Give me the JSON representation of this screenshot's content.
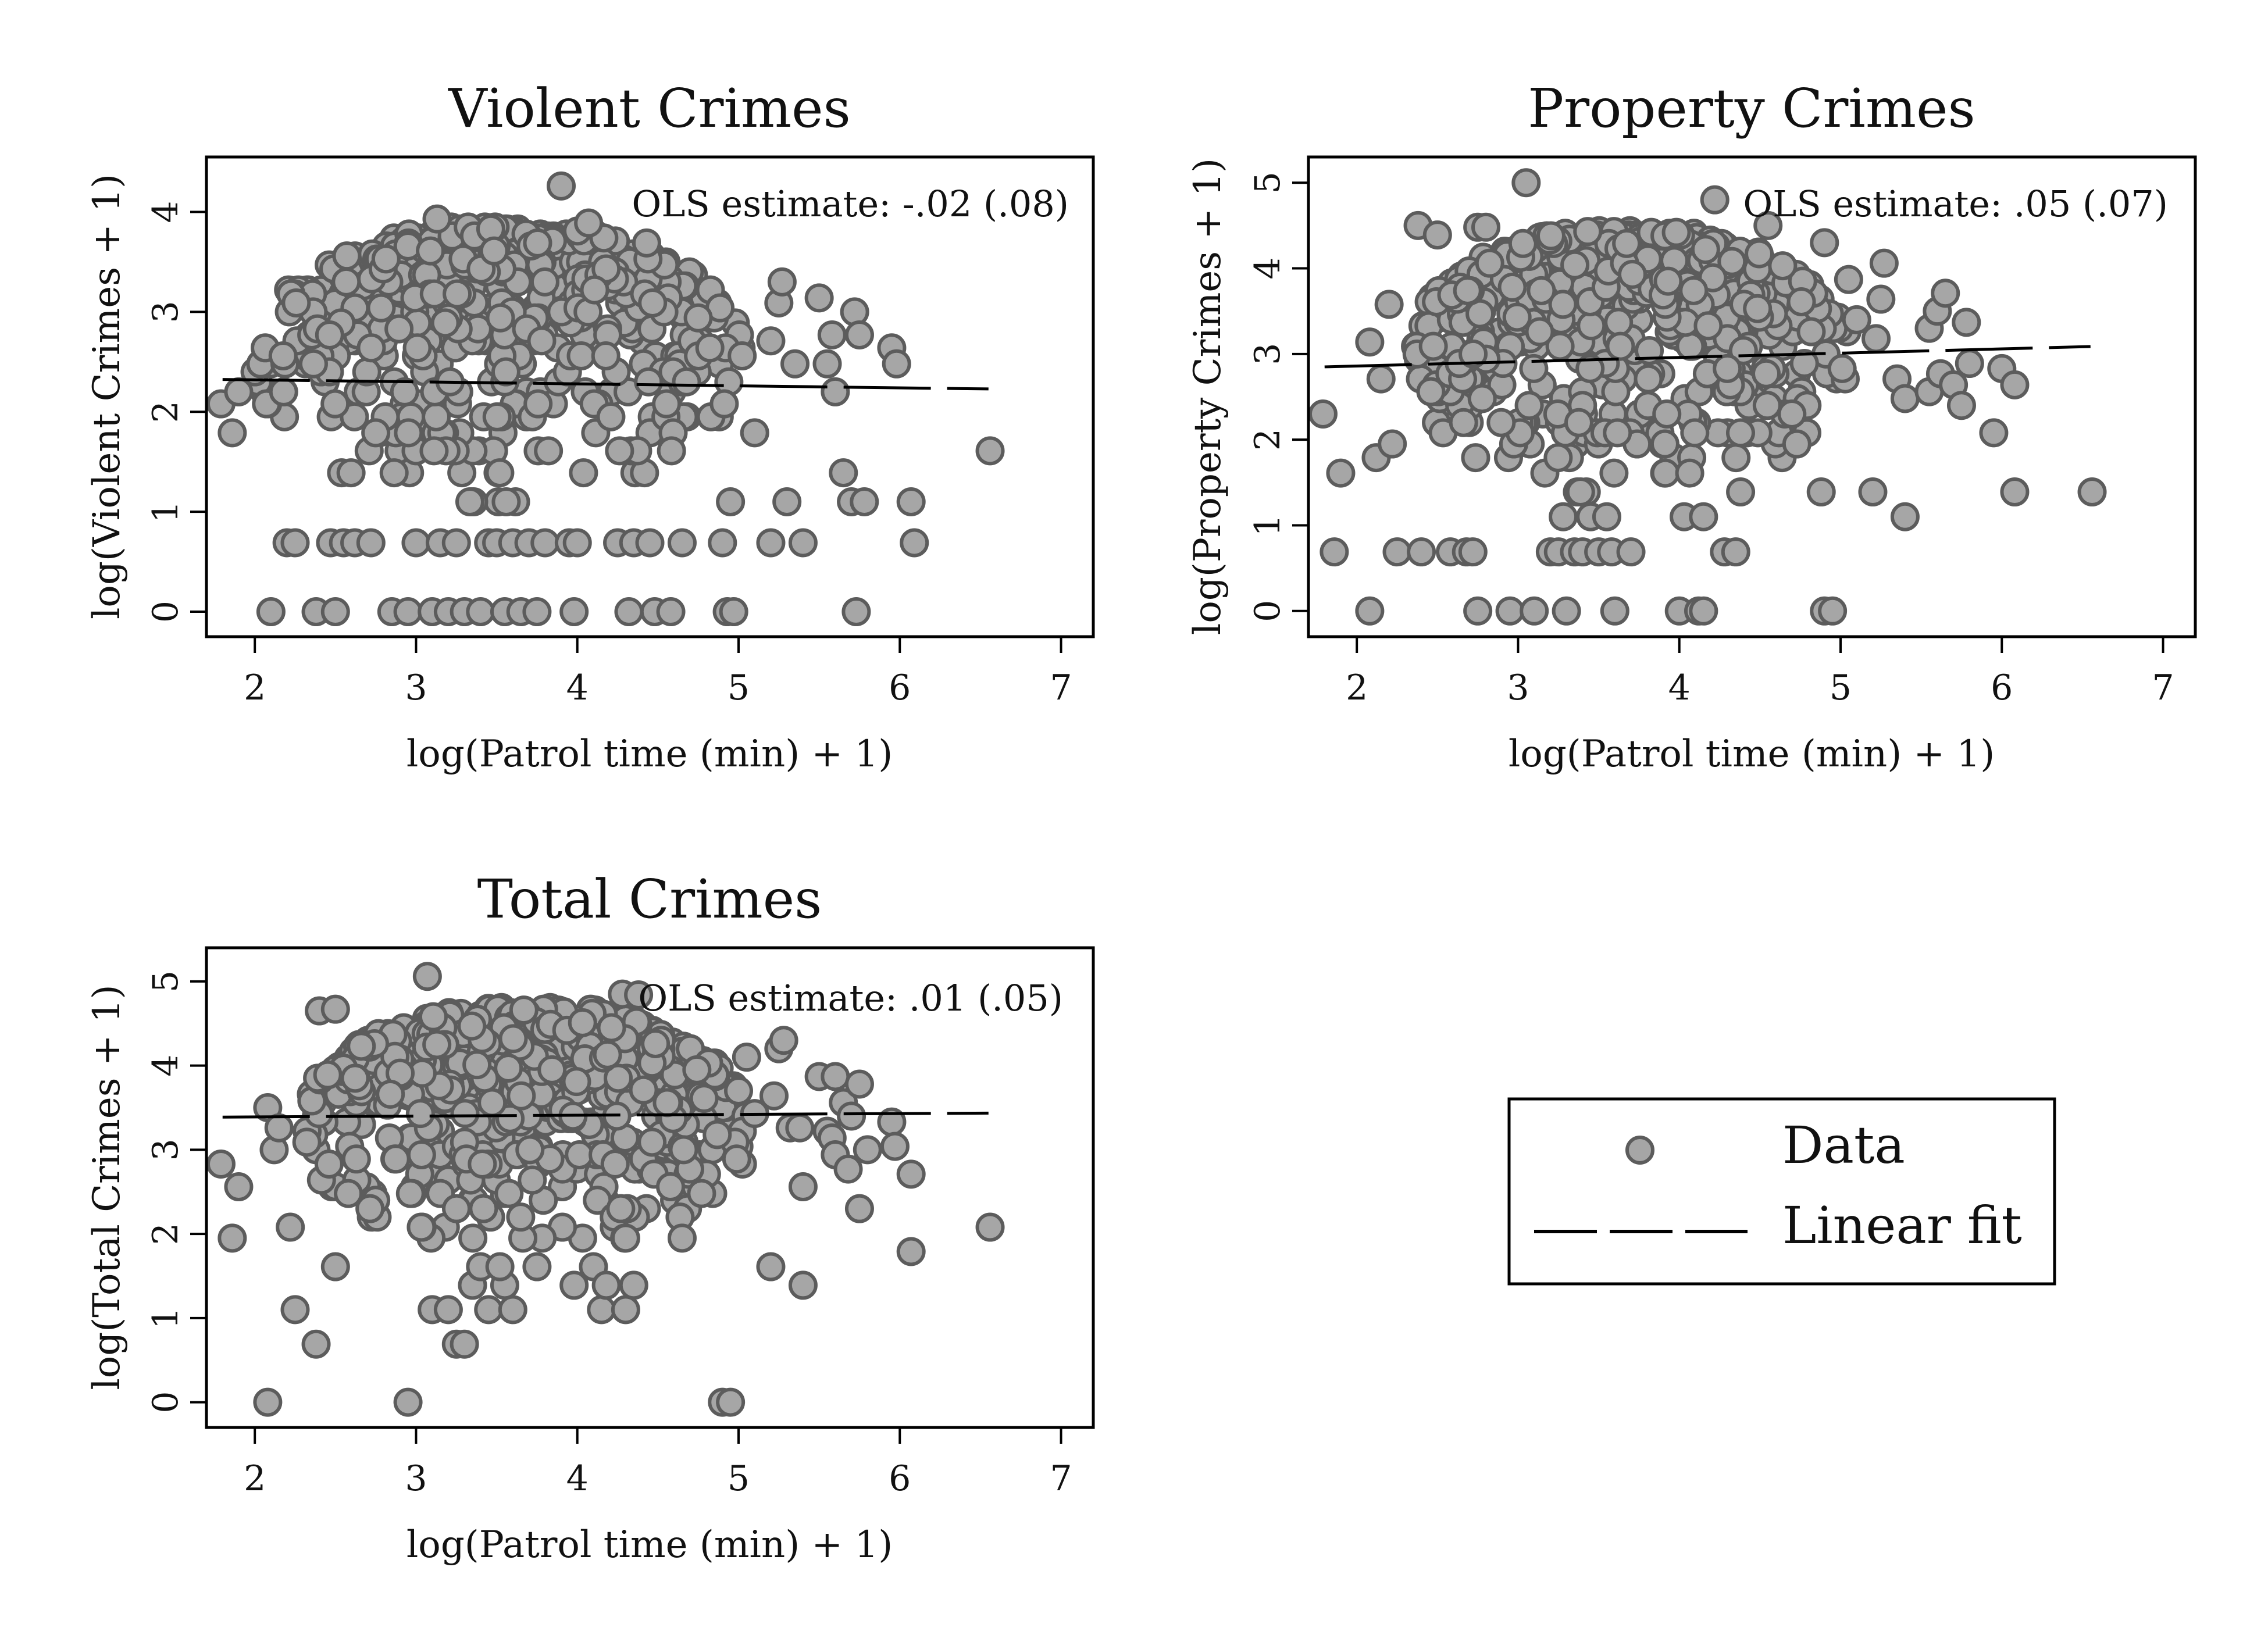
{
  "chart_data": [
    {
      "type": "scatter",
      "title": "Violent Crimes",
      "xlabel": "log(Patrol time (min) + 1)",
      "ylabel": "log(Violent Crimes + 1)",
      "annotation": "OLS estimate: -.02 (.08)",
      "xlim": [
        1.7,
        7.2
      ],
      "ylim": [
        -0.25,
        4.55
      ],
      "xticks": [
        2,
        3,
        4,
        5,
        6,
        7
      ],
      "yticks": [
        0,
        1,
        2,
        3,
        4
      ],
      "fit": {
        "slope": -0.02,
        "intercept": 2.36,
        "x": [
          1.8,
          6.55
        ]
      },
      "cloud": {
        "seed": 11,
        "n": 560,
        "xmin": 2.0,
        "xmax": 5.05,
        "ymin": 1.1,
        "ymax": 3.85,
        "levels": [
          1.1,
          1.39,
          1.61,
          1.79,
          1.95,
          2.08,
          2.2,
          2.3,
          2.4,
          2.48,
          2.56,
          2.64,
          2.71,
          2.77,
          2.83,
          2.89,
          2.94,
          3.0,
          3.04,
          3.09,
          3.14,
          3.18,
          3.22,
          3.26,
          3.3,
          3.33,
          3.37,
          3.4,
          3.43,
          3.47,
          3.5,
          3.53,
          3.56,
          3.58,
          3.61,
          3.64,
          3.66,
          3.69,
          3.71,
          3.74,
          3.76,
          3.78,
          3.81,
          3.83,
          3.85
        ]
      },
      "points": [
        {
          "x": 1.79,
          "y": 2.08
        },
        {
          "x": 1.86,
          "y": 1.79
        },
        {
          "x": 1.9,
          "y": 2.2
        },
        {
          "x": 2.1,
          "y": 0.0
        },
        {
          "x": 2.2,
          "y": 0.69
        },
        {
          "x": 2.25,
          "y": 0.69
        },
        {
          "x": 2.38,
          "y": 0.0
        },
        {
          "x": 2.5,
          "y": 0.0
        },
        {
          "x": 2.47,
          "y": 0.69
        },
        {
          "x": 2.55,
          "y": 0.69
        },
        {
          "x": 2.62,
          "y": 0.69
        },
        {
          "x": 2.72,
          "y": 0.69
        },
        {
          "x": 2.85,
          "y": 0.0
        },
        {
          "x": 2.95,
          "y": 0.0
        },
        {
          "x": 3.0,
          "y": 0.69
        },
        {
          "x": 3.1,
          "y": 0.0
        },
        {
          "x": 3.2,
          "y": 0.0
        },
        {
          "x": 3.15,
          "y": 0.69
        },
        {
          "x": 3.25,
          "y": 0.69
        },
        {
          "x": 3.3,
          "y": 0.0
        },
        {
          "x": 3.4,
          "y": 0.0
        },
        {
          "x": 3.45,
          "y": 0.69
        },
        {
          "x": 3.5,
          "y": 0.69
        },
        {
          "x": 3.55,
          "y": 0.0
        },
        {
          "x": 3.6,
          "y": 0.69
        },
        {
          "x": 3.65,
          "y": 0.0
        },
        {
          "x": 3.75,
          "y": 0.0
        },
        {
          "x": 3.7,
          "y": 0.69
        },
        {
          "x": 3.8,
          "y": 0.69
        },
        {
          "x": 3.95,
          "y": 0.69
        },
        {
          "x": 3.98,
          "y": 0.0
        },
        {
          "x": 4.0,
          "y": 0.69
        },
        {
          "x": 4.32,
          "y": 0.0
        },
        {
          "x": 4.25,
          "y": 0.69
        },
        {
          "x": 4.35,
          "y": 0.69
        },
        {
          "x": 4.45,
          "y": 0.69
        },
        {
          "x": 4.48,
          "y": 0.0
        },
        {
          "x": 4.58,
          "y": 0.0
        },
        {
          "x": 4.65,
          "y": 0.69
        },
        {
          "x": 4.9,
          "y": 0.69
        },
        {
          "x": 4.93,
          "y": 0.0
        },
        {
          "x": 4.97,
          "y": 0.0
        },
        {
          "x": 4.95,
          "y": 1.1
        },
        {
          "x": 5.1,
          "y": 1.79
        },
        {
          "x": 5.2,
          "y": 0.69
        },
        {
          "x": 5.3,
          "y": 1.1
        },
        {
          "x": 5.4,
          "y": 0.69
        },
        {
          "x": 5.2,
          "y": 2.71
        },
        {
          "x": 5.25,
          "y": 3.09
        },
        {
          "x": 5.27,
          "y": 3.3
        },
        {
          "x": 5.35,
          "y": 2.48
        },
        {
          "x": 5.5,
          "y": 3.14
        },
        {
          "x": 5.55,
          "y": 2.48
        },
        {
          "x": 5.6,
          "y": 2.2
        },
        {
          "x": 5.58,
          "y": 2.77
        },
        {
          "x": 5.65,
          "y": 1.39
        },
        {
          "x": 5.7,
          "y": 1.1
        },
        {
          "x": 5.72,
          "y": 3.0
        },
        {
          "x": 5.75,
          "y": 2.77
        },
        {
          "x": 5.78,
          "y": 1.1
        },
        {
          "x": 5.73,
          "y": 0.0
        },
        {
          "x": 5.95,
          "y": 2.64
        },
        {
          "x": 5.98,
          "y": 2.48
        },
        {
          "x": 6.07,
          "y": 1.1
        },
        {
          "x": 6.09,
          "y": 0.69
        },
        {
          "x": 6.56,
          "y": 1.61
        },
        {
          "x": 3.9,
          "y": 4.26
        },
        {
          "x": 4.07,
          "y": 3.89
        },
        {
          "x": 3.13,
          "y": 3.93
        },
        {
          "x": 4.43,
          "y": 3.69
        }
      ]
    },
    {
      "type": "scatter",
      "title": "Property Crimes",
      "xlabel": "log(Patrol time (min) + 1)",
      "ylabel": "log(Property Crimes + 1)",
      "annotation": "OLS estimate: .05 (.07)",
      "xlim": [
        1.7,
        7.2
      ],
      "ylim": [
        -0.3,
        5.3
      ],
      "xticks": [
        2,
        3,
        4,
        5,
        6,
        7
      ],
      "yticks": [
        0,
        1,
        2,
        3,
        4,
        5
      ],
      "fit": {
        "slope": 0.05,
        "intercept": 2.76,
        "x": [
          1.8,
          6.55
        ]
      },
      "cloud": {
        "seed": 23,
        "n": 620,
        "xmin": 2.3,
        "xmax": 5.05,
        "ymin": 1.39,
        "ymax": 4.45,
        "levels": [
          1.39,
          1.61,
          1.79,
          1.95,
          2.08,
          2.2,
          2.3,
          2.4,
          2.48,
          2.56,
          2.64,
          2.71,
          2.77,
          2.83,
          2.89,
          2.94,
          3.0,
          3.04,
          3.09,
          3.14,
          3.18,
          3.22,
          3.26,
          3.3,
          3.33,
          3.37,
          3.4,
          3.43,
          3.47,
          3.5,
          3.53,
          3.56,
          3.58,
          3.61,
          3.64,
          3.66,
          3.69,
          3.71,
          3.74,
          3.76,
          3.78,
          3.81,
          3.83,
          3.85,
          3.87,
          3.89,
          3.91,
          3.93,
          3.95,
          3.97,
          3.99,
          4.01,
          4.03,
          4.04,
          4.06,
          4.08,
          4.09,
          4.11,
          4.13,
          4.14,
          4.16,
          4.17,
          4.19,
          4.2,
          4.22,
          4.23,
          4.25,
          4.26,
          4.28,
          4.29,
          4.3,
          4.32,
          4.33,
          4.34,
          4.36,
          4.37,
          4.38,
          4.39,
          4.41,
          4.42,
          4.43,
          4.44
        ]
      },
      "points": [
        {
          "x": 1.79,
          "y": 2.3
        },
        {
          "x": 1.86,
          "y": 0.69
        },
        {
          "x": 1.9,
          "y": 1.61
        },
        {
          "x": 2.08,
          "y": 0.0
        },
        {
          "x": 2.08,
          "y": 3.14
        },
        {
          "x": 2.12,
          "y": 1.79
        },
        {
          "x": 2.15,
          "y": 2.71
        },
        {
          "x": 2.2,
          "y": 3.58
        },
        {
          "x": 2.22,
          "y": 1.95
        },
        {
          "x": 2.25,
          "y": 0.69
        },
        {
          "x": 2.4,
          "y": 0.69
        },
        {
          "x": 2.38,
          "y": 4.5
        },
        {
          "x": 2.5,
          "y": 4.39
        },
        {
          "x": 2.58,
          "y": 0.69
        },
        {
          "x": 2.68,
          "y": 0.69
        },
        {
          "x": 2.72,
          "y": 0.69
        },
        {
          "x": 2.75,
          "y": 0.0
        },
        {
          "x": 2.75,
          "y": 4.48
        },
        {
          "x": 2.8,
          "y": 4.48
        },
        {
          "x": 2.95,
          "y": 0.0
        },
        {
          "x": 3.05,
          "y": 5.0
        },
        {
          "x": 3.1,
          "y": 0.0
        },
        {
          "x": 3.2,
          "y": 0.69
        },
        {
          "x": 3.25,
          "y": 0.69
        },
        {
          "x": 3.3,
          "y": 0.0
        },
        {
          "x": 3.28,
          "y": 1.1
        },
        {
          "x": 3.35,
          "y": 0.69
        },
        {
          "x": 3.4,
          "y": 0.69
        },
        {
          "x": 3.45,
          "y": 1.1
        },
        {
          "x": 3.5,
          "y": 0.69
        },
        {
          "x": 3.55,
          "y": 1.1
        },
        {
          "x": 3.58,
          "y": 0.69
        },
        {
          "x": 3.6,
          "y": 0.0
        },
        {
          "x": 3.7,
          "y": 0.69
        },
        {
          "x": 4.0,
          "y": 0.0
        },
        {
          "x": 4.03,
          "y": 1.1
        },
        {
          "x": 4.12,
          "y": 0.0
        },
        {
          "x": 4.15,
          "y": 0.0
        },
        {
          "x": 4.15,
          "y": 1.1
        },
        {
          "x": 4.28,
          "y": 0.69
        },
        {
          "x": 4.35,
          "y": 0.69
        },
        {
          "x": 4.38,
          "y": 1.39
        },
        {
          "x": 4.88,
          "y": 1.39
        },
        {
          "x": 4.9,
          "y": 0.0
        },
        {
          "x": 4.95,
          "y": 0.0
        },
        {
          "x": 4.22,
          "y": 4.8
        },
        {
          "x": 4.55,
          "y": 4.5
        },
        {
          "x": 4.9,
          "y": 4.3
        },
        {
          "x": 5.05,
          "y": 3.87
        },
        {
          "x": 5.1,
          "y": 3.4
        },
        {
          "x": 5.22,
          "y": 3.18
        },
        {
          "x": 5.25,
          "y": 3.64
        },
        {
          "x": 5.27,
          "y": 4.06
        },
        {
          "x": 5.35,
          "y": 2.71
        },
        {
          "x": 5.4,
          "y": 2.48
        },
        {
          "x": 5.4,
          "y": 1.1
        },
        {
          "x": 5.2,
          "y": 1.39
        },
        {
          "x": 5.55,
          "y": 2.56
        },
        {
          "x": 5.55,
          "y": 3.3
        },
        {
          "x": 5.6,
          "y": 3.5
        },
        {
          "x": 5.62,
          "y": 2.77
        },
        {
          "x": 5.65,
          "y": 3.71
        },
        {
          "x": 5.7,
          "y": 2.64
        },
        {
          "x": 5.75,
          "y": 2.4
        },
        {
          "x": 5.78,
          "y": 3.37
        },
        {
          "x": 5.8,
          "y": 2.89
        },
        {
          "x": 5.95,
          "y": 2.08
        },
        {
          "x": 6.0,
          "y": 2.83
        },
        {
          "x": 6.08,
          "y": 2.64
        },
        {
          "x": 6.08,
          "y": 1.39
        },
        {
          "x": 6.56,
          "y": 1.39
        }
      ]
    },
    {
      "type": "scatter",
      "title": "Total Crimes",
      "xlabel": "log(Patrol time (min) + 1)",
      "ylabel": "log(Total Crimes + 1)",
      "annotation": "OLS estimate: .01 (.05)",
      "xlim": [
        1.7,
        7.2
      ],
      "ylim": [
        -0.3,
        5.4
      ],
      "xticks": [
        2,
        3,
        4,
        5,
        6,
        7
      ],
      "yticks": [
        0,
        1,
        2,
        3,
        4,
        5
      ],
      "fit": {
        "slope": 0.01,
        "intercept": 3.37,
        "x": [
          1.8,
          6.55
        ]
      },
      "cloud": {
        "seed": 37,
        "n": 640,
        "xmin": 2.3,
        "xmax": 5.05,
        "ymin": 1.8,
        "ymax": 4.7,
        "levels": [
          1.79,
          1.95,
          2.08,
          2.2,
          2.3,
          2.4,
          2.48,
          2.56,
          2.64,
          2.71,
          2.77,
          2.83,
          2.89,
          2.94,
          3.0,
          3.04,
          3.09,
          3.14,
          3.18,
          3.22,
          3.26,
          3.3,
          3.33,
          3.37,
          3.4,
          3.43,
          3.47,
          3.5,
          3.53,
          3.56,
          3.58,
          3.61,
          3.64,
          3.66,
          3.69,
          3.71,
          3.74,
          3.76,
          3.78,
          3.81,
          3.83,
          3.85,
          3.87,
          3.89,
          3.91,
          3.93,
          3.95,
          3.97,
          3.99,
          4.01,
          4.03,
          4.04,
          4.06,
          4.08,
          4.09,
          4.11,
          4.13,
          4.14,
          4.16,
          4.17,
          4.19,
          4.2,
          4.22,
          4.23,
          4.25,
          4.26,
          4.28,
          4.29,
          4.3,
          4.32,
          4.33,
          4.34,
          4.36,
          4.37,
          4.38,
          4.39,
          4.41,
          4.42,
          4.43,
          4.44,
          4.45,
          4.47,
          4.48,
          4.49,
          4.5,
          4.51,
          4.52,
          4.53,
          4.54,
          4.55,
          4.56,
          4.57,
          4.58,
          4.6,
          4.61,
          4.62,
          4.63,
          4.64,
          4.65,
          4.66,
          4.67,
          4.68,
          4.69,
          4.7
        ]
      },
      "points": [
        {
          "x": 1.79,
          "y": 2.83
        },
        {
          "x": 1.86,
          "y": 1.95
        },
        {
          "x": 1.9,
          "y": 2.56
        },
        {
          "x": 2.08,
          "y": 0.0
        },
        {
          "x": 2.08,
          "y": 3.5
        },
        {
          "x": 2.12,
          "y": 3.0
        },
        {
          "x": 2.15,
          "y": 3.26
        },
        {
          "x": 2.22,
          "y": 2.08
        },
        {
          "x": 2.25,
          "y": 1.1
        },
        {
          "x": 2.38,
          "y": 0.69
        },
        {
          "x": 2.4,
          "y": 4.65
        },
        {
          "x": 2.5,
          "y": 4.67
        },
        {
          "x": 2.5,
          "y": 1.61
        },
        {
          "x": 2.95,
          "y": 0.0
        },
        {
          "x": 3.1,
          "y": 1.1
        },
        {
          "x": 3.2,
          "y": 1.1
        },
        {
          "x": 3.25,
          "y": 0.69
        },
        {
          "x": 3.3,
          "y": 0.69
        },
        {
          "x": 3.35,
          "y": 1.39
        },
        {
          "x": 3.4,
          "y": 1.61
        },
        {
          "x": 3.45,
          "y": 1.1
        },
        {
          "x": 3.55,
          "y": 1.39
        },
        {
          "x": 3.6,
          "y": 1.1
        },
        {
          "x": 3.52,
          "y": 1.61
        },
        {
          "x": 3.75,
          "y": 1.61
        },
        {
          "x": 3.98,
          "y": 1.39
        },
        {
          "x": 4.1,
          "y": 1.61
        },
        {
          "x": 4.15,
          "y": 1.1
        },
        {
          "x": 4.18,
          "y": 1.39
        },
        {
          "x": 4.3,
          "y": 1.1
        },
        {
          "x": 4.35,
          "y": 1.39
        },
        {
          "x": 4.3,
          "y": 1.95
        },
        {
          "x": 4.65,
          "y": 1.95
        },
        {
          "x": 4.9,
          "y": 0.0
        },
        {
          "x": 4.95,
          "y": 0.0
        },
        {
          "x": 3.07,
          "y": 5.06
        },
        {
          "x": 4.28,
          "y": 4.85
        },
        {
          "x": 4.38,
          "y": 4.84
        },
        {
          "x": 5.0,
          "y": 3.7
        },
        {
          "x": 5.05,
          "y": 4.1
        },
        {
          "x": 5.1,
          "y": 3.43
        },
        {
          "x": 5.22,
          "y": 3.64
        },
        {
          "x": 5.25,
          "y": 4.2
        },
        {
          "x": 5.28,
          "y": 4.3
        },
        {
          "x": 5.32,
          "y": 3.26
        },
        {
          "x": 5.38,
          "y": 3.26
        },
        {
          "x": 5.2,
          "y": 1.61
        },
        {
          "x": 5.4,
          "y": 1.39
        },
        {
          "x": 5.4,
          "y": 2.56
        },
        {
          "x": 5.5,
          "y": 3.87
        },
        {
          "x": 5.55,
          "y": 3.22
        },
        {
          "x": 5.58,
          "y": 3.14
        },
        {
          "x": 5.6,
          "y": 3.87
        },
        {
          "x": 5.6,
          "y": 2.94
        },
        {
          "x": 5.65,
          "y": 3.56
        },
        {
          "x": 5.68,
          "y": 2.77
        },
        {
          "x": 5.7,
          "y": 3.4
        },
        {
          "x": 5.75,
          "y": 3.78
        },
        {
          "x": 5.75,
          "y": 2.3
        },
        {
          "x": 5.8,
          "y": 3.0
        },
        {
          "x": 5.95,
          "y": 3.33
        },
        {
          "x": 5.97,
          "y": 3.04
        },
        {
          "x": 6.07,
          "y": 2.71
        },
        {
          "x": 6.07,
          "y": 1.79
        },
        {
          "x": 6.56,
          "y": 2.08
        }
      ]
    }
  ],
  "legend": {
    "placement": "bottom-right",
    "entries": [
      {
        "label": "Data",
        "marker": "circle"
      },
      {
        "label": "Linear fit",
        "marker": "dashed-line"
      }
    ]
  },
  "colors": {
    "marker_fill": "#a6a6a6",
    "marker_edge": "#5c5c5c",
    "line": "#000000"
  }
}
